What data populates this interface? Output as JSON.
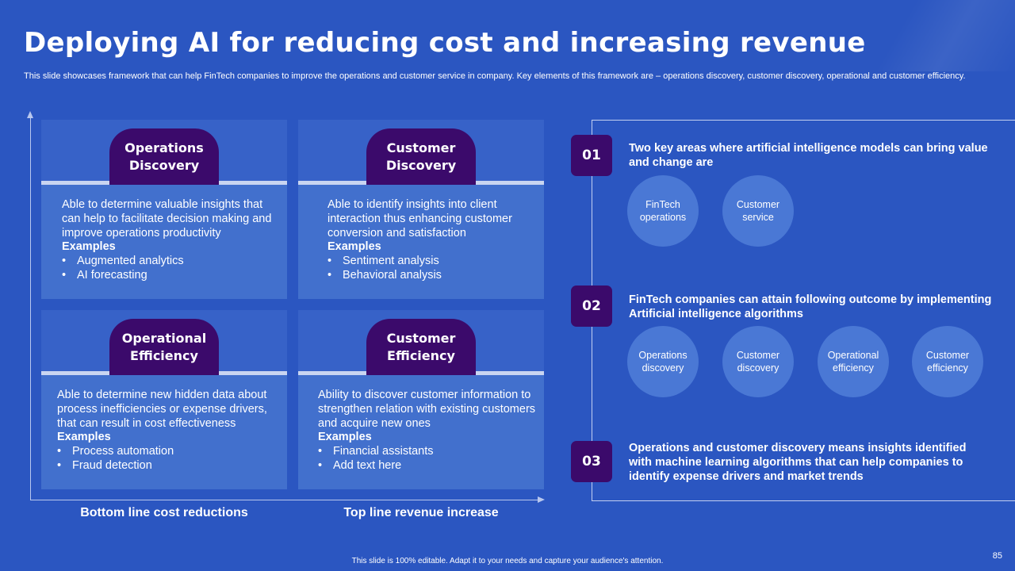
{
  "header": {
    "title": "Deploying AI for reducing cost and increasing revenue",
    "subtitle": "This slide showcases framework that can help FinTech companies to improve the operations and customer service in company. Key elements of this framework are – operations discovery, customer discovery, operational and customer efficiency."
  },
  "quadrants": [
    {
      "title": "Operations Discovery",
      "description": "Able to determine valuable insights that can help to facilitate decision making and improve operations productivity",
      "examples_label": "Examples",
      "examples": [
        "Augmented analytics",
        "AI forecasting"
      ]
    },
    {
      "title": "Customer Discovery",
      "description": "Able to identify insights into client interaction thus enhancing customer conversion and satisfaction",
      "examples_label": "Examples",
      "examples": [
        "Sentiment analysis",
        "Behavioral analysis"
      ]
    },
    {
      "title": "Operational Efficiency",
      "description": "Able to determine new hidden data about process inefficiencies or expense drivers, that can result in cost effectiveness",
      "examples_label": "Examples",
      "examples": [
        "Process automation",
        "Fraud detection"
      ]
    },
    {
      "title": "Customer Efficiency",
      "description": "Ability to discover customer information to strengthen relation with existing customers and acquire new ones",
      "examples_label": "Examples",
      "examples": [
        "Financial assistants",
        "Add text here"
      ]
    }
  ],
  "axes": {
    "x_left_label": "Bottom line cost reductions",
    "x_right_label": "Top line revenue increase"
  },
  "points": [
    {
      "number": "01",
      "text": "Two key areas where artificial intelligence models can bring value and change are",
      "circles": [
        "FinTech operations",
        "Customer service"
      ]
    },
    {
      "number": "02",
      "text": "FinTech companies can attain following outcome by implementing Artificial intelligence algorithms",
      "circles": [
        "Operations discovery",
        "Customer discovery",
        "Operational efficiency",
        "Customer efficiency"
      ]
    },
    {
      "number": "03",
      "text": "Operations and customer discovery means insights identified with machine learning algorithms that can help companies to identify expense drivers and market trends",
      "circles": []
    }
  ],
  "footer": {
    "note": "This slide is 100% editable. Adapt it to your needs and capture your audience's attention.",
    "page_number": "85"
  },
  "colors": {
    "background": "#2b56c1",
    "accent_purple": "#3b0a6b",
    "card": "#4270cd",
    "circle": "#4a78d5"
  }
}
